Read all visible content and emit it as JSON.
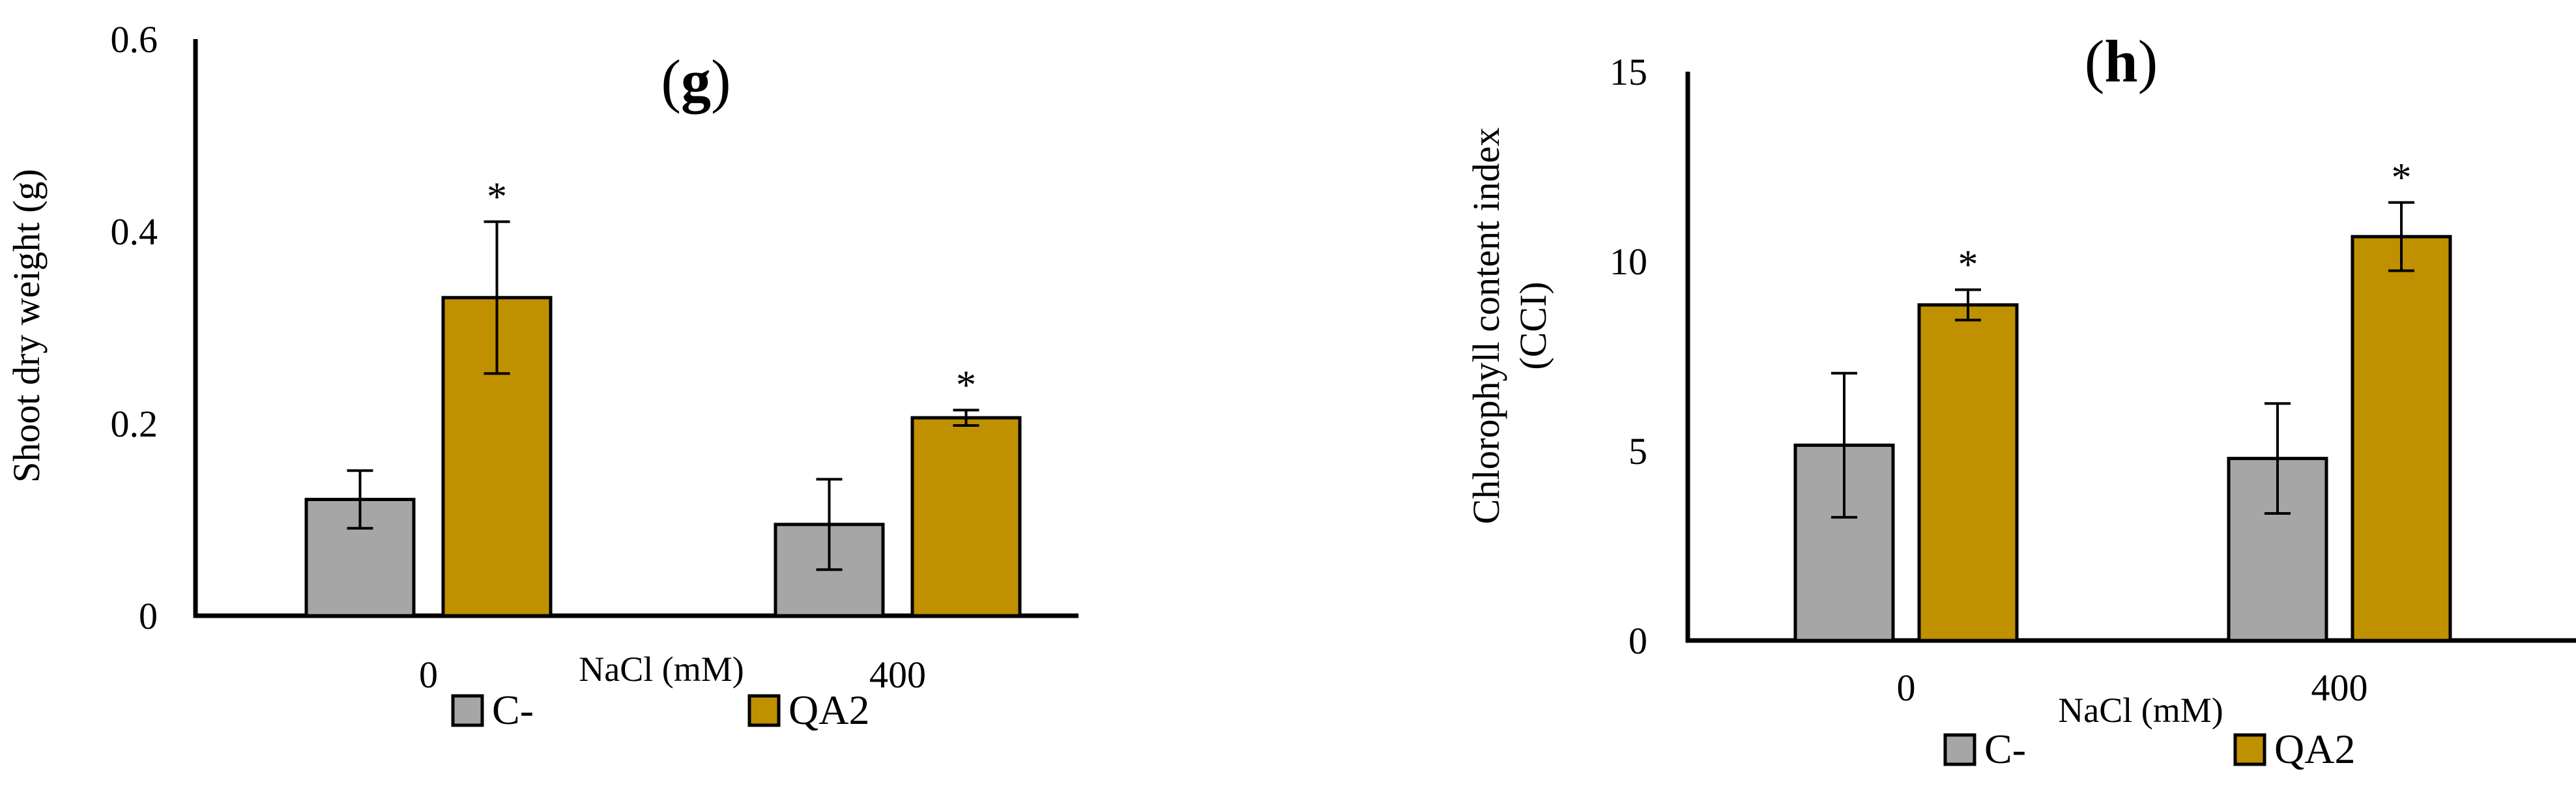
{
  "chart_data": [
    {
      "panel": "(g)",
      "type": "bar",
      "title_letter": "g",
      "title": "(g)",
      "xlabel": "NaCl (mM)",
      "ylabel": "Shoot dry weight (g)",
      "categories": [
        "0",
        "400"
      ],
      "ylim": [
        0,
        0.6
      ],
      "yticks": [
        "0",
        "0.2",
        "0.4",
        "0.6"
      ],
      "grid": false,
      "legend_position": "bottom-left",
      "series": [
        {
          "name": "C-",
          "color": "#a6a6a6",
          "values": [
            0.121,
            0.095
          ],
          "errors": [
            0.03,
            0.047
          ],
          "stars": [
            false,
            false
          ]
        },
        {
          "name": "QA2",
          "color": "#bf9000",
          "values": [
            0.331,
            0.206
          ],
          "errors": [
            0.079,
            0.008
          ],
          "stars": [
            true,
            true
          ]
        }
      ],
      "star_symbol": "*"
    },
    {
      "panel": "(h)",
      "type": "bar",
      "title_letter": "h",
      "title": "(h)",
      "xlabel": "NaCl (mM)",
      "ylabel_lines": [
        "Chlorophyll content index",
        "(CCI)"
      ],
      "categories": [
        "0",
        "400"
      ],
      "ylim": [
        0,
        15
      ],
      "yticks": [
        "0",
        "5",
        "10",
        "15"
      ],
      "grid": false,
      "legend_position": "bottom-left",
      "series": [
        {
          "name": "C-",
          "color": "#a6a6a6",
          "values": [
            5.15,
            4.8
          ],
          "errors": [
            1.9,
            1.45
          ],
          "stars": [
            false,
            false
          ]
        },
        {
          "name": "QA2",
          "color": "#bf9000",
          "values": [
            8.85,
            10.65
          ],
          "errors": [
            0.4,
            0.9
          ],
          "stars": [
            true,
            true
          ]
        }
      ],
      "star_symbol": "*"
    }
  ]
}
